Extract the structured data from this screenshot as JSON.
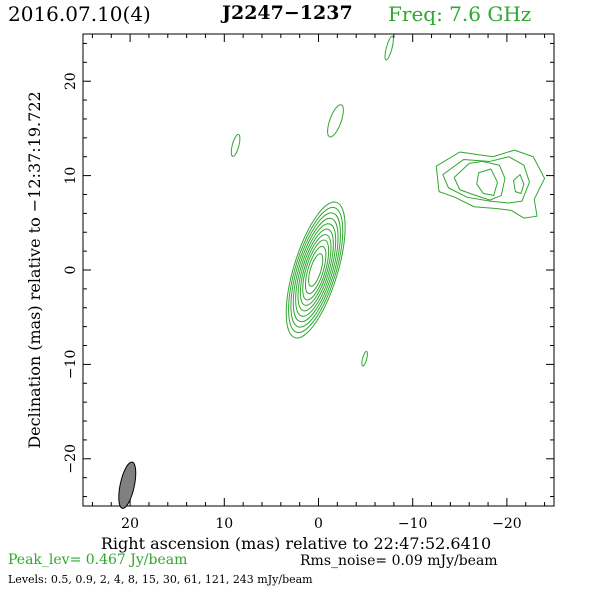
{
  "header": {
    "date": "2016.07.10(4)",
    "source": "J2247−1237",
    "freq": "Freq: 7.6 GHz"
  },
  "footer": {
    "peak": "Peak_lev=  0.467 Jy/beam",
    "noise": "Rms_noise= 0.09 mJy/beam",
    "levels": "Levels: 0.5, 0.9,   2,   4,   8,  15,  30,  61, 121, 243 mJy/beam"
  },
  "colors": {
    "contour": "#2ea82e",
    "beam_fill": "#808080",
    "freq_text": "#2ea82e",
    "peak_text": "#2ea82e"
  },
  "chart_data": {
    "type": "contour",
    "xlabel": "Right ascension (mas) relative to 22:47:52.6410",
    "ylabel": "Declination (mas) relative to −12:37:19.722",
    "xlim": [
      25,
      -25
    ],
    "ylim": [
      -25,
      25
    ],
    "x_ticks": [
      20,
      10,
      0,
      -10,
      -20
    ],
    "x_tick_labels": [
      "20",
      "10",
      "0",
      "−10",
      "−20"
    ],
    "y_ticks": [
      -20,
      -10,
      0,
      10,
      20
    ],
    "y_tick_labels": [
      "−20",
      "−10",
      "0",
      "10",
      "20"
    ],
    "contour_levels_mJy": [
      0.5,
      0.9,
      2,
      4,
      8,
      15,
      30,
      61,
      121,
      243
    ],
    "core": {
      "x": 0.3,
      "y": 0.0,
      "semi_major": [
        7.5,
        6.9,
        6.3,
        5.7,
        5.1,
        4.5,
        3.9,
        3.3,
        2.6,
        1.8
      ],
      "axis_ratio": 0.31,
      "pa_deg": 17
    },
    "jet_components": [
      {
        "x": -18.0,
        "y": 8.5
      },
      {
        "x": -19.0,
        "y": 8.0
      },
      {
        "x": -20.0,
        "y": 8.2
      }
    ],
    "small_islands": [
      {
        "x": -7.5,
        "y": 23.5,
        "a": 1.3,
        "b": 0.3,
        "pa_deg": 15
      },
      {
        "x": -1.8,
        "y": 15.8,
        "a": 1.8,
        "b": 0.6,
        "pa_deg": 20
      },
      {
        "x": 8.8,
        "y": 13.2,
        "a": 1.2,
        "b": 0.35,
        "pa_deg": 15
      },
      {
        "x": -4.9,
        "y": -9.4,
        "a": 0.8,
        "b": 0.22,
        "pa_deg": 15
      }
    ],
    "beam": {
      "x": 20.3,
      "y": -22.8,
      "a": 2.5,
      "b": 0.75,
      "pa_deg": 12
    }
  }
}
